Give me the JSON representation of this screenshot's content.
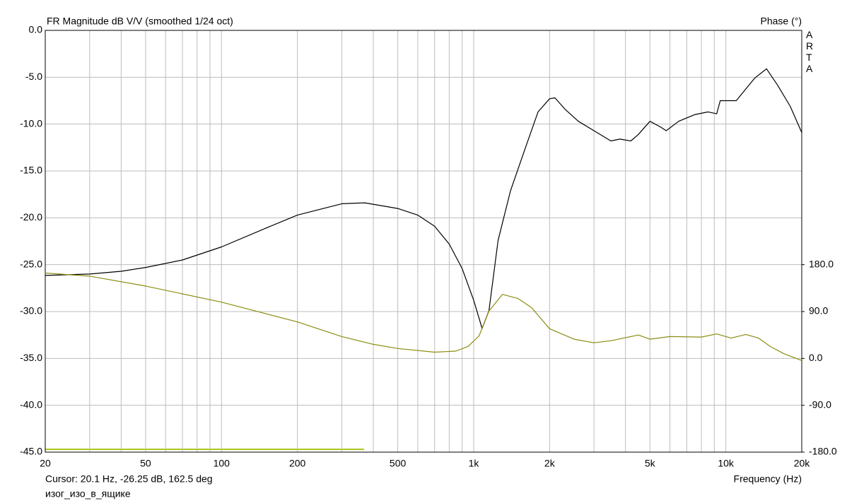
{
  "chart_data": {
    "type": "line",
    "title": "FR Magnitude dB V/V (smoothed 1/24 oct)",
    "y2_label": "Phase (°)",
    "brand": "ARTA",
    "x_label": "Frequency (Hz)",
    "cursor_text": "Cursor: 20.1 Hz, -26.25 dB, 162.5 deg",
    "file_name": "изог_изо_в_ящике",
    "xscale": "log",
    "grid": true,
    "xlim": [
      20,
      20000
    ],
    "xticks": [
      20,
      50,
      100,
      200,
      500,
      {
        "value": 1000,
        "label": "1k"
      },
      {
        "value": 2000,
        "label": "2k"
      },
      {
        "value": 5000,
        "label": "5k"
      },
      {
        "value": 10000,
        "label": "10k"
      },
      {
        "value": 20000,
        "label": "20k"
      }
    ],
    "xminorticks": [
      30,
      40,
      60,
      70,
      80,
      90,
      300,
      400,
      600,
      700,
      800,
      900,
      3000,
      4000,
      6000,
      7000,
      8000,
      9000
    ],
    "ylim": [
      -45,
      0
    ],
    "yticks": [
      {
        "value": 0,
        "label": "0.0"
      },
      {
        "value": -5,
        "label": "-5.0"
      },
      {
        "value": -10,
        "label": "-10.0"
      },
      {
        "value": -15,
        "label": "-15.0"
      },
      {
        "value": -20,
        "label": "-20.0"
      },
      {
        "value": -25,
        "label": "-25.0"
      },
      {
        "value": -30,
        "label": "-30.0"
      },
      {
        "value": -35,
        "label": "-35.0"
      },
      {
        "value": -40,
        "label": "-40.0"
      },
      {
        "value": -45,
        "label": "-45.0"
      }
    ],
    "y2lim": [
      -180,
      630
    ],
    "y2ticks": [
      {
        "value": 180,
        "label": "180.0"
      },
      {
        "value": 90,
        "label": "90.0"
      },
      {
        "value": 0,
        "label": "0.0"
      },
      {
        "value": -90,
        "label": "-90.0"
      },
      {
        "value": -180,
        "label": "-180.0"
      }
    ],
    "series": [
      {
        "name": "Magnitude",
        "color": "#000000",
        "x": [
          20,
          30,
          40,
          50,
          70,
          100,
          150,
          200,
          300,
          370,
          500,
          600,
          700,
          800,
          900,
          1000,
          1080,
          1150,
          1250,
          1400,
          1600,
          1800,
          2000,
          2100,
          2300,
          2600,
          3000,
          3500,
          3800,
          4200,
          4500,
          5000,
          5500,
          5800,
          6500,
          7500,
          8500,
          9200,
          9500,
          11000,
          13000,
          14500,
          16000,
          18000,
          20000
        ],
        "values": [
          -26.15,
          -26.0,
          -25.7,
          -25.3,
          -24.5,
          -23.1,
          -21.1,
          -19.7,
          -18.5,
          -18.4,
          -19.0,
          -19.7,
          -20.9,
          -22.8,
          -25.4,
          -28.8,
          -31.8,
          -29.9,
          -22.4,
          -17.1,
          -12.6,
          -8.7,
          -7.3,
          -7.2,
          -8.4,
          -9.7,
          -10.7,
          -11.8,
          -11.6,
          -11.8,
          -11.1,
          -9.7,
          -10.3,
          -10.7,
          -9.7,
          -9.0,
          -8.7,
          -8.9,
          -7.5,
          -7.5,
          -5.1,
          -4.1,
          -5.8,
          -8.1,
          -10.9
        ]
      },
      {
        "name": "Phase",
        "color": "#8c8c12",
        "axis": "y2",
        "x": [
          20,
          30,
          50,
          100,
          200,
          300,
          400,
          500,
          700,
          850,
          950,
          1050,
          1150,
          1300,
          1500,
          1700,
          2000,
          2500,
          3000,
          3500,
          4500,
          5000,
          6000,
          8000,
          9200,
          10500,
          12000,
          13500,
          15000,
          17000,
          20000
        ],
        "values": [
          164,
          158,
          139,
          108,
          70,
          42,
          27,
          19,
          12,
          14,
          23,
          43,
          91,
          123,
          115,
          97,
          57,
          37,
          30,
          34,
          45,
          37,
          42,
          41,
          47,
          39,
          46,
          39,
          23,
          9,
          -4
        ]
      }
    ]
  }
}
